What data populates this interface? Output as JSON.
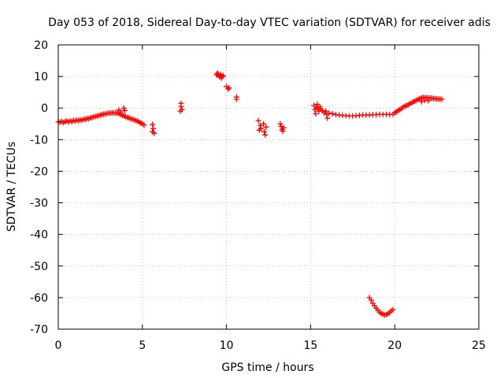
{
  "chart_data": {
    "type": "scatter",
    "title": "Day 053 of 2018, Sidereal Day-to-day VTEC variation (SDTVAR) for receiver adis",
    "xlabel": "GPS time / hours",
    "ylabel": "SDTVAR / TECUs",
    "xlim": [
      0,
      25
    ],
    "ylim": [
      -70,
      20
    ],
    "xticks": [
      "0",
      "5",
      "10",
      "15",
      "20",
      "25"
    ],
    "yticks": [
      "20",
      "10",
      "0",
      "-10",
      "-20",
      "-30",
      "-40",
      "-50",
      "-60",
      "-70"
    ],
    "grid": true,
    "marker": "plus",
    "color": "#ff0000",
    "series": [
      {
        "name": "SDTVAR",
        "points": [
          [
            0.0,
            -4.3
          ],
          [
            0.1,
            -4.5
          ],
          [
            0.2,
            -4.2
          ],
          [
            0.3,
            -4.6
          ],
          [
            0.4,
            -4.3
          ],
          [
            0.5,
            -4.1
          ],
          [
            0.6,
            -4.4
          ],
          [
            0.7,
            -4.0
          ],
          [
            0.8,
            -4.3
          ],
          [
            0.9,
            -3.9
          ],
          [
            1.0,
            -4.1
          ],
          [
            1.1,
            -3.8
          ],
          [
            1.2,
            -4.0
          ],
          [
            1.3,
            -3.7
          ],
          [
            1.4,
            -3.9
          ],
          [
            1.5,
            -3.5
          ],
          [
            1.6,
            -3.6
          ],
          [
            1.7,
            -3.3
          ],
          [
            1.8,
            -3.4
          ],
          [
            1.9,
            -3.1
          ],
          [
            2.0,
            -3.0
          ],
          [
            2.1,
            -2.8
          ],
          [
            2.2,
            -2.7
          ],
          [
            2.3,
            -2.5
          ],
          [
            2.4,
            -2.4
          ],
          [
            2.5,
            -2.2
          ],
          [
            2.6,
            -2.1
          ],
          [
            2.7,
            -1.9
          ],
          [
            2.8,
            -1.9
          ],
          [
            2.9,
            -1.7
          ],
          [
            3.0,
            -1.6
          ],
          [
            3.1,
            -1.6
          ],
          [
            3.2,
            -1.5
          ],
          [
            3.3,
            -1.5
          ],
          [
            3.4,
            -1.6
          ],
          [
            3.5,
            -1.6
          ],
          [
            3.6,
            -1.7
          ],
          [
            3.7,
            -2.0
          ],
          [
            3.8,
            -2.3
          ],
          [
            3.9,
            -2.5
          ],
          [
            4.0,
            -2.7
          ],
          [
            4.1,
            -3.0
          ],
          [
            4.2,
            -3.1
          ],
          [
            4.3,
            -3.4
          ],
          [
            4.4,
            -3.5
          ],
          [
            4.5,
            -3.7
          ],
          [
            4.6,
            -3.9
          ],
          [
            4.7,
            -4.1
          ],
          [
            4.8,
            -4.4
          ],
          [
            4.9,
            -4.7
          ],
          [
            5.0,
            -5.0
          ],
          [
            5.1,
            -5.4
          ],
          [
            3.6,
            -0.6
          ],
          [
            3.7,
            -1.2
          ],
          [
            3.9,
            0.0
          ],
          [
            3.95,
            -0.8
          ],
          [
            5.6,
            -5.2
          ],
          [
            5.65,
            -6.5
          ],
          [
            5.7,
            -8.0
          ],
          [
            5.6,
            -7.5
          ],
          [
            7.3,
            1.5
          ],
          [
            7.3,
            0.5
          ],
          [
            7.35,
            -0.5
          ],
          [
            7.25,
            -1.0
          ],
          [
            9.4,
            10.5
          ],
          [
            9.45,
            11.0
          ],
          [
            9.5,
            10.8
          ],
          [
            9.55,
            10.2
          ],
          [
            9.6,
            9.9
          ],
          [
            9.65,
            10.6
          ],
          [
            9.7,
            9.5
          ],
          [
            9.75,
            10.0
          ],
          [
            9.8,
            10.3
          ],
          [
            10.0,
            6.8
          ],
          [
            10.1,
            6.0
          ],
          [
            10.15,
            6.4
          ],
          [
            10.6,
            3.5
          ],
          [
            10.6,
            2.8
          ],
          [
            11.9,
            -4.0
          ],
          [
            12.0,
            -5.5
          ],
          [
            11.95,
            -7.0
          ],
          [
            12.05,
            -6.5
          ],
          [
            12.2,
            -5.0
          ],
          [
            12.25,
            -7.5
          ],
          [
            12.3,
            -8.5
          ],
          [
            12.35,
            -6.0
          ],
          [
            13.2,
            -5.0
          ],
          [
            13.25,
            -5.8
          ],
          [
            13.3,
            -6.8
          ],
          [
            13.35,
            -7.3
          ],
          [
            13.4,
            -6.2
          ],
          [
            15.2,
            0.8
          ],
          [
            15.25,
            -0.5
          ],
          [
            15.3,
            -1.8
          ],
          [
            15.35,
            0.2
          ],
          [
            15.4,
            1.2
          ],
          [
            15.45,
            -0.2
          ],
          [
            15.5,
            -1.0
          ],
          [
            15.55,
            0.5
          ],
          [
            15.6,
            -0.3
          ],
          [
            15.7,
            -0.8
          ],
          [
            15.8,
            -1.5
          ],
          [
            15.9,
            -1.0
          ],
          [
            16.0,
            -3.2
          ],
          [
            15.95,
            -2.0
          ],
          [
            16.1,
            -1.6
          ],
          [
            16.3,
            -1.8
          ],
          [
            16.5,
            -2.1
          ],
          [
            16.7,
            -2.2
          ],
          [
            16.9,
            -2.3
          ],
          [
            17.1,
            -2.4
          ],
          [
            17.3,
            -2.5
          ],
          [
            17.5,
            -2.5
          ],
          [
            17.7,
            -2.4
          ],
          [
            17.9,
            -2.3
          ],
          [
            18.1,
            -2.2
          ],
          [
            18.3,
            -2.2
          ],
          [
            18.5,
            -2.2
          ],
          [
            18.7,
            -2.1
          ],
          [
            18.9,
            -2.1
          ],
          [
            19.1,
            -2.0
          ],
          [
            19.3,
            -2.0
          ],
          [
            19.5,
            -2.0
          ],
          [
            19.7,
            -2.1
          ],
          [
            19.9,
            -2.0
          ],
          [
            20.0,
            -1.5
          ],
          [
            20.1,
            -1.2
          ],
          [
            20.2,
            -0.8
          ],
          [
            20.3,
            -0.5
          ],
          [
            20.4,
            -0.2
          ],
          [
            20.5,
            0.3
          ],
          [
            20.6,
            0.6
          ],
          [
            20.7,
            0.8
          ],
          [
            20.8,
            1.0
          ],
          [
            20.9,
            1.4
          ],
          [
            21.0,
            1.6
          ],
          [
            21.1,
            1.9
          ],
          [
            21.2,
            2.2
          ],
          [
            21.3,
            2.5
          ],
          [
            21.4,
            2.8
          ],
          [
            21.5,
            3.0
          ],
          [
            21.6,
            3.2
          ],
          [
            21.7,
            3.4
          ],
          [
            21.8,
            3.3
          ],
          [
            21.9,
            3.3
          ],
          [
            22.0,
            3.2
          ],
          [
            22.1,
            3.1
          ],
          [
            22.2,
            3.2
          ],
          [
            22.3,
            3.0
          ],
          [
            22.4,
            3.0
          ],
          [
            22.5,
            2.9
          ],
          [
            22.6,
            2.9
          ],
          [
            22.7,
            2.8
          ],
          [
            22.8,
            2.8
          ],
          [
            21.6,
            2.0
          ],
          [
            21.8,
            2.5
          ],
          [
            22.0,
            2.3
          ],
          [
            18.5,
            -60.0
          ],
          [
            18.6,
            -60.8
          ],
          [
            18.7,
            -61.8
          ],
          [
            18.8,
            -62.6
          ],
          [
            18.9,
            -63.4
          ],
          [
            19.0,
            -64.0
          ],
          [
            19.1,
            -64.6
          ],
          [
            19.2,
            -65.0
          ],
          [
            19.3,
            -65.3
          ],
          [
            19.4,
            -65.5
          ],
          [
            19.5,
            -65.4
          ],
          [
            19.6,
            -65.1
          ],
          [
            19.7,
            -64.7
          ],
          [
            19.8,
            -64.2
          ],
          [
            19.9,
            -63.8
          ]
        ]
      }
    ]
  }
}
